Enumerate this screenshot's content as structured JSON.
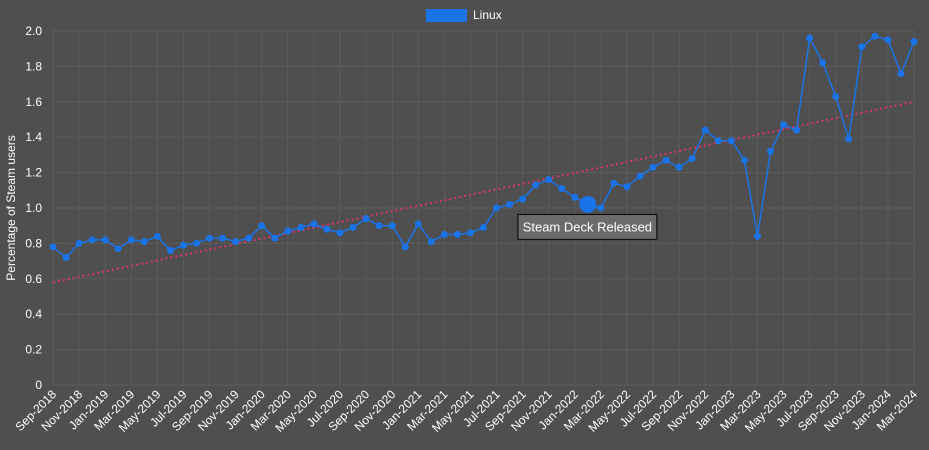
{
  "colors": {
    "background": "#4f4f4f",
    "grid": "#5c5c5c",
    "series": "#1a73e8",
    "trend": "#d6336c",
    "text": "#ffffff",
    "annotation_bg": "#6b6b6b"
  },
  "chart_data": {
    "type": "line",
    "title": "",
    "xlabel": "",
    "ylabel": "Percentage of Steam users",
    "ylim": [
      0,
      2.0
    ],
    "yticks": [
      "0",
      "0.2",
      "0.4",
      "0.6",
      "0.8",
      "1.0",
      "1.2",
      "1.4",
      "1.6",
      "1.8",
      "2.0"
    ],
    "grid": true,
    "legend_position": "top-center",
    "x": [
      "Sep-2018",
      "Oct-2018",
      "Nov-2018",
      "Dec-2018",
      "Jan-2019",
      "Feb-2019",
      "Mar-2019",
      "Apr-2019",
      "May-2019",
      "Jun-2019",
      "Jul-2019",
      "Aug-2019",
      "Sep-2019",
      "Oct-2019",
      "Nov-2019",
      "Dec-2019",
      "Jan-2020",
      "Feb-2020",
      "Mar-2020",
      "Apr-2020",
      "May-2020",
      "Jun-2020",
      "Jul-2020",
      "Aug-2020",
      "Sep-2020",
      "Oct-2020",
      "Nov-2020",
      "Dec-2020",
      "Jan-2021",
      "Feb-2021",
      "Mar-2021",
      "Apr-2021",
      "May-2021",
      "Jun-2021",
      "Jul-2021",
      "Aug-2021",
      "Sep-2021",
      "Oct-2021",
      "Nov-2021",
      "Dec-2021",
      "Jan-2022",
      "Feb-2022",
      "Mar-2022",
      "Apr-2022",
      "May-2022",
      "Jun-2022",
      "Jul-2022",
      "Aug-2022",
      "Sep-2022",
      "Oct-2022",
      "Nov-2022",
      "Dec-2022",
      "Jan-2023",
      "Feb-2023",
      "Mar-2023",
      "Apr-2023",
      "May-2023",
      "Jun-2023",
      "Jul-2023",
      "Aug-2023",
      "Sep-2023",
      "Oct-2023",
      "Nov-2023",
      "Dec-2023",
      "Jan-2024",
      "Feb-2024",
      "Mar-2024"
    ],
    "xtick_labels": [
      "Sep-2018",
      "Nov-2018",
      "Jan-2019",
      "Mar-2019",
      "May-2019",
      "Jul-2019",
      "Sep-2019",
      "Nov-2019",
      "Jan-2020",
      "Mar-2020",
      "May-2020",
      "Jul-2020",
      "Sep-2020",
      "Nov-2020",
      "Jan-2021",
      "Mar-2021",
      "May-2021",
      "Jul-2021",
      "Sep-2021",
      "Nov-2021",
      "Jan-2022",
      "Mar-2022",
      "May-2022",
      "Jul-2022",
      "Sep-2022",
      "Nov-2022",
      "Jan-2023",
      "Mar-2023",
      "May-2023",
      "Jul-2023",
      "Sep-2023",
      "Nov-2023",
      "Jan-2024",
      "Mar-2024"
    ],
    "series": [
      {
        "name": "Linux",
        "values": [
          0.78,
          0.72,
          0.8,
          0.82,
          0.82,
          0.77,
          0.82,
          0.81,
          0.84,
          0.76,
          0.79,
          0.8,
          0.83,
          0.83,
          0.81,
          0.83,
          0.9,
          0.83,
          0.87,
          0.89,
          0.91,
          0.88,
          0.86,
          0.89,
          0.94,
          0.9,
          0.9,
          0.78,
          0.91,
          0.81,
          0.85,
          0.85,
          0.86,
          0.89,
          1.0,
          1.02,
          1.05,
          1.13,
          1.16,
          1.11,
          1.06,
          1.02,
          1.0,
          1.14,
          1.12,
          1.18,
          1.23,
          1.27,
          1.23,
          1.28,
          1.44,
          1.38,
          1.38,
          1.27,
          0.84,
          1.32,
          1.47,
          1.44,
          1.96,
          1.82,
          1.63,
          1.39,
          1.91,
          1.97,
          1.95,
          1.76,
          1.94
        ]
      }
    ],
    "trendline": {
      "start": 0.58,
      "end": 1.6
    },
    "annotations": [
      {
        "x": "Feb-2022",
        "value": 1.02,
        "text": "Steam Deck Released"
      }
    ]
  }
}
